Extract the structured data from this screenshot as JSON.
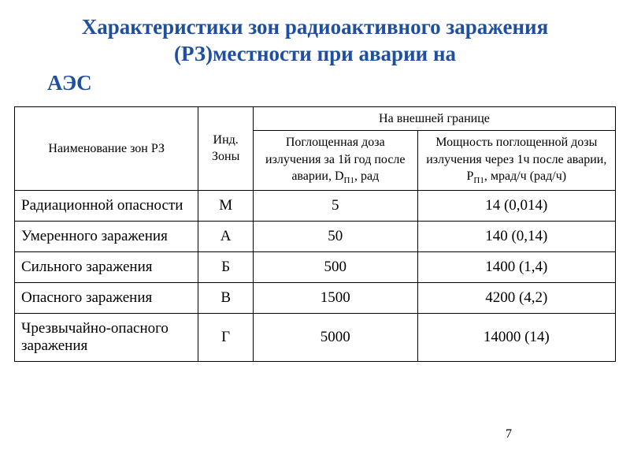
{
  "title_main": "Характеристики зон радиоактивного заражения (РЗ)местности при аварии на",
  "title_trail": "АЭС",
  "title_color": "#1f50a0",
  "headers": {
    "zone_name": "Наименование зон РЗ",
    "zone_index": "Инд. Зоны",
    "outer_boundary": "На внешней границе",
    "absorbed_dose_pre": "Поглощенная доза излучения за 1й год после аварии, D",
    "absorbed_dose_sub": "П1",
    "absorbed_dose_post": ", рад",
    "power_pre": "Мощность поглощенной дозы излучения через 1ч после аварии, Р",
    "power_sub": "П1",
    "power_post": ", мрад/ч (рад/ч)"
  },
  "rows": [
    {
      "name": "Радиационной опасности",
      "index": "М",
      "dose": "5",
      "power": "14 (0,014)"
    },
    {
      "name": "Умеренного заражения",
      "index": "А",
      "dose": "50",
      "power": "140 (0,14)"
    },
    {
      "name": "Сильного заражения",
      "index": "Б",
      "dose": "500",
      "power": "1400 (1,4)"
    },
    {
      "name": "Опасного заражения",
      "index": "В",
      "dose": "1500",
      "power": "4200 (4,2)"
    },
    {
      "name": "Чрезвычайно-опасного заражения",
      "index": "Г",
      "dose": "5000",
      "power": "14000 (14)"
    }
  ],
  "page_number": "7",
  "colors": {
    "background": "#ffffff",
    "text": "#000000",
    "border": "#000000"
  },
  "font_sizes": {
    "title": 27,
    "header": 16,
    "cell": 19,
    "sub": 11,
    "page_num": 16
  }
}
